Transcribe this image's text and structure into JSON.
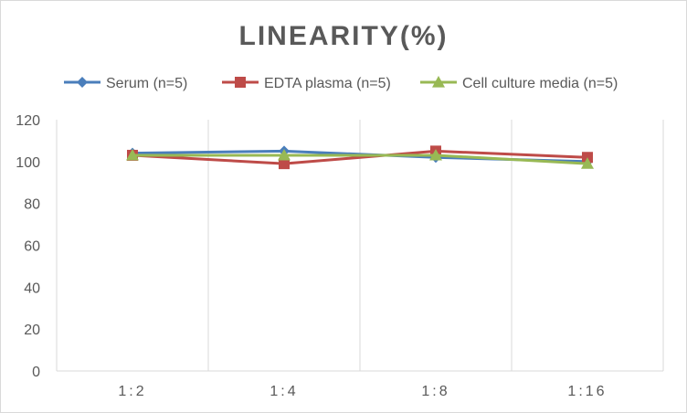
{
  "chart_data": {
    "type": "line",
    "title": "LINEARITY(%)",
    "categories": [
      "1:2",
      "1:4",
      "1:8",
      "1:16"
    ],
    "ylim": [
      0,
      120
    ],
    "yticks": [
      0,
      20,
      40,
      60,
      80,
      100,
      120
    ],
    "grid": "vertical",
    "legend_position": "top",
    "series": [
      {
        "name": "Serum (n=5)",
        "color": "#4a7ebb",
        "marker": "diamond",
        "values": [
          104,
          105,
          102,
          100
        ]
      },
      {
        "name": "EDTA plasma (n=5)",
        "color": "#be4b48",
        "marker": "square",
        "values": [
          103,
          99,
          105,
          102
        ]
      },
      {
        "name": "Cell culture media (n=5)",
        "color": "#98b954",
        "marker": "triangle",
        "values": [
          103,
          103,
          103,
          99
        ]
      }
    ]
  }
}
